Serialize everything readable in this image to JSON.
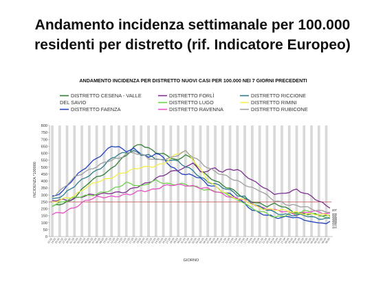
{
  "slide": {
    "title_line1": "Andamento incidenza settimanale per 100.000",
    "title_line2": "residenti per distretto (rif. Indicatore Europeo)"
  },
  "chart_data": {
    "type": "line",
    "title": "ANDAMENTO INCIDENZA PER DISTRETTO NUOVI CASI PER 100.000 NEI 7 GIORNI PRECEDENTI",
    "xlabel": "GIORNO",
    "ylabel": "INCIDENZA *100000",
    "ylim": [
      0,
      800
    ],
    "yticks": [
      0,
      50,
      100,
      150,
      200,
      250,
      300,
      350,
      400,
      450,
      500,
      550,
      600,
      650,
      700,
      750,
      800
    ],
    "x_count": 76,
    "x_labels": [
      "23.02",
      "24.02",
      "25.02",
      "26.02",
      "27.02",
      "28.02",
      "01.03",
      "02.03",
      "03.03",
      "04.03",
      "05.03",
      "06.03",
      "07.03",
      "08.03",
      "09.03",
      "10.03",
      "11.03",
      "12.03",
      "13.03",
      "14.03",
      "15.03",
      "16.03",
      "17.03",
      "18.03",
      "19.03",
      "20.03",
      "21.03",
      "22.03",
      "23.03",
      "24.03",
      "25.03",
      "26.03",
      "27.03",
      "28.03",
      "29.03",
      "30.03",
      "31.03",
      "01.04",
      "02.04",
      "03.04",
      "04.04",
      "05.04",
      "06.04",
      "07.04",
      "08.04",
      "09.04",
      "10.04",
      "11.04",
      "12.04",
      "13.04",
      "14.04",
      "15.04",
      "16.04",
      "17.04",
      "18.04",
      "19.04",
      "20.04",
      "21.04",
      "22.04",
      "23.04",
      "24.04",
      "25.04",
      "26.04",
      "27.04",
      "28.04",
      "29.04",
      "30.04",
      "01.05",
      "02.05",
      "03.05",
      "04.05",
      "05.05",
      "06.05",
      "07.05",
      "08.05",
      "09.05"
    ],
    "threshold": {
      "value": 250,
      "color": "#c0504d"
    },
    "grid": true,
    "legend_position": "top",
    "series": [
      {
        "name": "DISTRETTO CESENA - VALLE DEL SAVIO",
        "color": "#2e7d32",
        "keys": [
          [
            0,
            210
          ],
          [
            5,
            260
          ],
          [
            10,
            390
          ],
          [
            15,
            470
          ],
          [
            18,
            545
          ],
          [
            20,
            580
          ],
          [
            22,
            640
          ],
          [
            24,
            665
          ],
          [
            26,
            640
          ],
          [
            28,
            610
          ],
          [
            30,
            590
          ],
          [
            32,
            565
          ],
          [
            34,
            545
          ],
          [
            36,
            600
          ],
          [
            38,
            555
          ],
          [
            40,
            470
          ],
          [
            42,
            430
          ],
          [
            44,
            400
          ],
          [
            46,
            375
          ],
          [
            48,
            350
          ],
          [
            50,
            315
          ],
          [
            52,
            265
          ],
          [
            54,
            250
          ],
          [
            56,
            240
          ],
          [
            58,
            225
          ],
          [
            60,
            235
          ],
          [
            62,
            215
          ],
          [
            64,
            190
          ],
          [
            66,
            175
          ],
          [
            68,
            170
          ],
          [
            70,
            165
          ],
          [
            72,
            150
          ],
          [
            75,
            145
          ]
        ]
      },
      {
        "name": "DISTRETTO FAENZA",
        "color": "#1f3fbf",
        "keys": [
          [
            0,
            290
          ],
          [
            3,
            330
          ],
          [
            6,
            420
          ],
          [
            9,
            500
          ],
          [
            12,
            570
          ],
          [
            14,
            600
          ],
          [
            16,
            650
          ],
          [
            18,
            640
          ],
          [
            20,
            620
          ],
          [
            22,
            635
          ],
          [
            24,
            600
          ],
          [
            26,
            560
          ],
          [
            28,
            600
          ],
          [
            30,
            570
          ],
          [
            32,
            510
          ],
          [
            34,
            470
          ],
          [
            36,
            440
          ],
          [
            38,
            440
          ],
          [
            40,
            420
          ],
          [
            42,
            380
          ],
          [
            44,
            360
          ],
          [
            46,
            320
          ],
          [
            48,
            300
          ],
          [
            50,
            280
          ],
          [
            52,
            240
          ],
          [
            54,
            195
          ],
          [
            56,
            165
          ],
          [
            58,
            150
          ],
          [
            60,
            140
          ],
          [
            62,
            140
          ],
          [
            64,
            150
          ],
          [
            66,
            130
          ],
          [
            68,
            120
          ],
          [
            70,
            100
          ],
          [
            72,
            110
          ],
          [
            74,
            90
          ],
          [
            75,
            115
          ]
        ]
      },
      {
        "name": "DISTRETTO FORLÌ",
        "color": "#7b2d8e",
        "keys": [
          [
            0,
            255
          ],
          [
            4,
            265
          ],
          [
            8,
            290
          ],
          [
            12,
            300
          ],
          [
            16,
            320
          ],
          [
            20,
            320
          ],
          [
            24,
            370
          ],
          [
            28,
            420
          ],
          [
            32,
            460
          ],
          [
            36,
            500
          ],
          [
            38,
            540
          ],
          [
            40,
            460
          ],
          [
            42,
            470
          ],
          [
            44,
            490
          ],
          [
            46,
            470
          ],
          [
            48,
            490
          ],
          [
            50,
            480
          ],
          [
            52,
            440
          ],
          [
            54,
            400
          ],
          [
            56,
            380
          ],
          [
            58,
            340
          ],
          [
            60,
            310
          ],
          [
            62,
            300
          ],
          [
            64,
            320
          ],
          [
            66,
            340
          ],
          [
            68,
            320
          ],
          [
            70,
            290
          ],
          [
            72,
            250
          ],
          [
            74,
            220
          ],
          [
            75,
            210
          ]
        ]
      },
      {
        "name": "DISTRETTO LUGO",
        "color": "#6bd04a",
        "keys": [
          [
            0,
            230
          ],
          [
            4,
            260
          ],
          [
            8,
            290
          ],
          [
            12,
            310
          ],
          [
            16,
            330
          ],
          [
            18,
            360
          ],
          [
            20,
            390
          ],
          [
            22,
            380
          ],
          [
            24,
            360
          ],
          [
            26,
            380
          ],
          [
            28,
            400
          ],
          [
            30,
            390
          ],
          [
            32,
            380
          ],
          [
            34,
            380
          ],
          [
            36,
            370
          ],
          [
            38,
            360
          ],
          [
            40,
            350
          ],
          [
            42,
            340
          ],
          [
            44,
            330
          ],
          [
            46,
            310
          ],
          [
            48,
            290
          ],
          [
            50,
            260
          ],
          [
            52,
            250
          ],
          [
            54,
            200
          ],
          [
            56,
            180
          ],
          [
            58,
            160
          ],
          [
            60,
            140
          ],
          [
            62,
            150
          ],
          [
            64,
            170
          ],
          [
            66,
            160
          ],
          [
            68,
            180
          ],
          [
            70,
            175
          ],
          [
            72,
            155
          ],
          [
            75,
            140
          ]
        ]
      },
      {
        "name": "DISTRETTO RAVENNA",
        "color": "#e84ec3",
        "keys": [
          [
            0,
            155
          ],
          [
            3,
            175
          ],
          [
            6,
            215
          ],
          [
            9,
            255
          ],
          [
            12,
            280
          ],
          [
            15,
            290
          ],
          [
            18,
            295
          ],
          [
            21,
            300
          ],
          [
            24,
            330
          ],
          [
            27,
            340
          ],
          [
            30,
            360
          ],
          [
            33,
            370
          ],
          [
            36,
            375
          ],
          [
            38,
            365
          ],
          [
            40,
            350
          ],
          [
            42,
            340
          ],
          [
            44,
            325
          ],
          [
            46,
            310
          ],
          [
            48,
            290
          ],
          [
            50,
            275
          ],
          [
            52,
            260
          ],
          [
            54,
            240
          ],
          [
            56,
            215
          ],
          [
            58,
            205
          ],
          [
            60,
            190
          ],
          [
            62,
            180
          ],
          [
            64,
            170
          ],
          [
            66,
            160
          ],
          [
            68,
            175
          ],
          [
            70,
            185
          ],
          [
            72,
            170
          ],
          [
            75,
            160
          ]
        ]
      },
      {
        "name": "DISTRETTO RICCIONE",
        "color": "#2b7b8c",
        "keys": [
          [
            0,
            270
          ],
          [
            3,
            300
          ],
          [
            6,
            360
          ],
          [
            9,
            430
          ],
          [
            12,
            480
          ],
          [
            14,
            510
          ],
          [
            16,
            560
          ],
          [
            18,
            590
          ],
          [
            20,
            610
          ],
          [
            22,
            620
          ],
          [
            24,
            590
          ],
          [
            26,
            580
          ],
          [
            28,
            560
          ],
          [
            30,
            550
          ],
          [
            32,
            560
          ],
          [
            34,
            540
          ],
          [
            36,
            500
          ],
          [
            38,
            470
          ],
          [
            40,
            430
          ],
          [
            42,
            400
          ],
          [
            44,
            380
          ],
          [
            46,
            350
          ],
          [
            48,
            330
          ],
          [
            50,
            300
          ],
          [
            52,
            290
          ],
          [
            54,
            240
          ],
          [
            56,
            210
          ],
          [
            58,
            190
          ],
          [
            60,
            175
          ],
          [
            62,
            165
          ],
          [
            64,
            160
          ],
          [
            66,
            150
          ],
          [
            68,
            150
          ],
          [
            70,
            140
          ],
          [
            72,
            135
          ],
          [
            75,
            130
          ]
        ]
      },
      {
        "name": "DISTRETTO RIMINI",
        "color": "#f2ee4a",
        "keys": [
          [
            0,
            240
          ],
          [
            3,
            270
          ],
          [
            6,
            300
          ],
          [
            9,
            350
          ],
          [
            12,
            390
          ],
          [
            15,
            420
          ],
          [
            18,
            450
          ],
          [
            21,
            470
          ],
          [
            24,
            500
          ],
          [
            27,
            510
          ],
          [
            30,
            520
          ],
          [
            32,
            560
          ],
          [
            34,
            600
          ],
          [
            36,
            620
          ],
          [
            38,
            560
          ],
          [
            40,
            480
          ],
          [
            42,
            400
          ],
          [
            44,
            360
          ],
          [
            46,
            330
          ],
          [
            48,
            300
          ],
          [
            50,
            270
          ],
          [
            52,
            255
          ],
          [
            54,
            230
          ],
          [
            56,
            210
          ],
          [
            58,
            200
          ],
          [
            60,
            195
          ],
          [
            62,
            185
          ],
          [
            64,
            180
          ],
          [
            66,
            175
          ],
          [
            68,
            170
          ],
          [
            70,
            160
          ],
          [
            72,
            155
          ],
          [
            75,
            150
          ]
        ]
      },
      {
        "name": "DISTRETTO RUBICONE",
        "color": "#9e9e9e",
        "keys": [
          [
            0,
            290
          ],
          [
            3,
            350
          ],
          [
            6,
            420
          ],
          [
            9,
            470
          ],
          [
            12,
            510
          ],
          [
            15,
            540
          ],
          [
            18,
            560
          ],
          [
            20,
            600
          ],
          [
            22,
            610
          ],
          [
            24,
            590
          ],
          [
            26,
            560
          ],
          [
            28,
            550
          ],
          [
            30,
            560
          ],
          [
            32,
            570
          ],
          [
            34,
            590
          ],
          [
            36,
            610
          ],
          [
            38,
            570
          ],
          [
            40,
            540
          ],
          [
            42,
            500
          ],
          [
            44,
            470
          ],
          [
            46,
            440
          ],
          [
            48,
            420
          ],
          [
            50,
            400
          ],
          [
            52,
            380
          ],
          [
            54,
            350
          ],
          [
            56,
            330
          ],
          [
            58,
            290
          ],
          [
            60,
            260
          ],
          [
            62,
            250
          ],
          [
            64,
            230
          ],
          [
            66,
            220
          ],
          [
            68,
            210
          ],
          [
            70,
            200
          ],
          [
            72,
            190
          ],
          [
            75,
            180
          ]
        ]
      }
    ],
    "end_labels": [
      "207",
      "200",
      "191",
      "166",
      "160",
      "155",
      "141",
      "114"
    ]
  }
}
